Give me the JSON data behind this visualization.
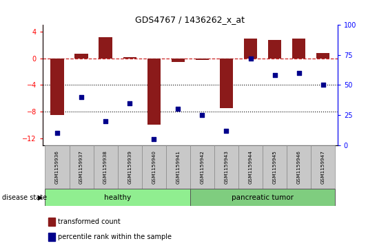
{
  "title": "GDS4767 / 1436262_x_at",
  "samples": [
    "GSM1159936",
    "GSM1159937",
    "GSM1159938",
    "GSM1159939",
    "GSM1159940",
    "GSM1159941",
    "GSM1159942",
    "GSM1159943",
    "GSM1159944",
    "GSM1159945",
    "GSM1159946",
    "GSM1159947"
  ],
  "bar_values": [
    -8.5,
    0.7,
    3.2,
    0.2,
    -10.0,
    -0.5,
    -0.2,
    -7.5,
    3.0,
    2.8,
    3.0,
    0.8
  ],
  "blue_values": [
    10,
    40,
    20,
    35,
    5,
    30,
    25,
    12,
    72,
    58,
    60,
    50
  ],
  "healthy_count": 6,
  "tumor_count": 6,
  "ylim_left": [
    -13,
    5
  ],
  "ylim_right": [
    0,
    100
  ],
  "bar_color": "#8B1A1A",
  "blue_color": "#00008B",
  "healthy_color": "#90EE90",
  "tumor_color": "#7FCD7F",
  "label_bg_color": "#C8C8C8",
  "hline_color": "#CC2222",
  "legend_red_label": "transformed count",
  "legend_blue_label": "percentile rank within the sample",
  "disease_label": "disease state",
  "healthy_label": "healthy",
  "tumor_label": "pancreatic tumor"
}
